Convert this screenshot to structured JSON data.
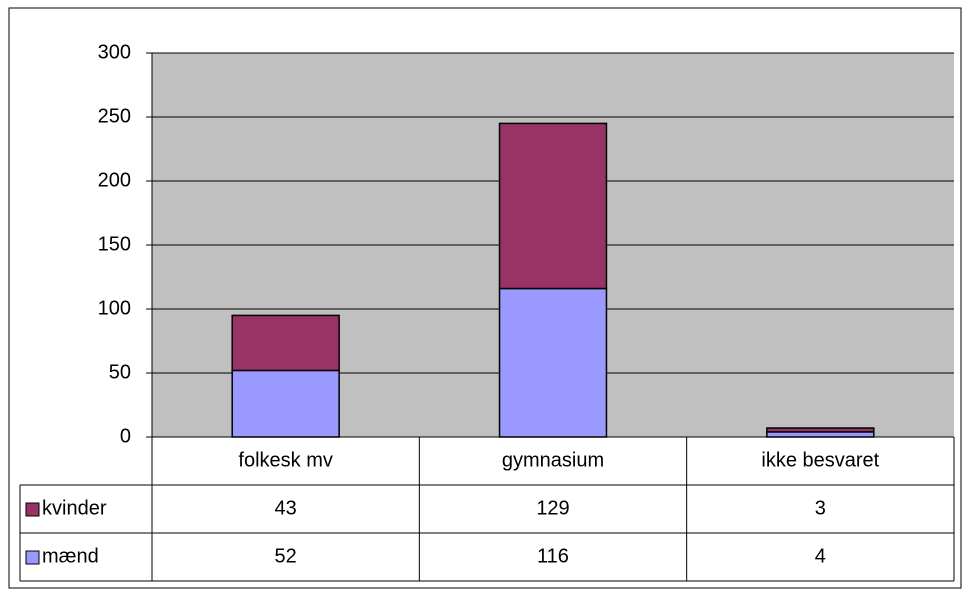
{
  "chart_data": {
    "type": "bar",
    "stacked": true,
    "categories": [
      "folkesk mv",
      "gymnasium",
      "ikke besvaret"
    ],
    "series": [
      {
        "name": "kvinder",
        "color": "#993366",
        "values": [
          43,
          129,
          3
        ]
      },
      {
        "name": "mænd",
        "color": "#9999ff",
        "values": [
          52,
          116,
          4
        ]
      }
    ],
    "ylim": [
      0,
      300
    ],
    "yticks": [
      0,
      50,
      100,
      150,
      200,
      250,
      300
    ],
    "grid": true
  }
}
